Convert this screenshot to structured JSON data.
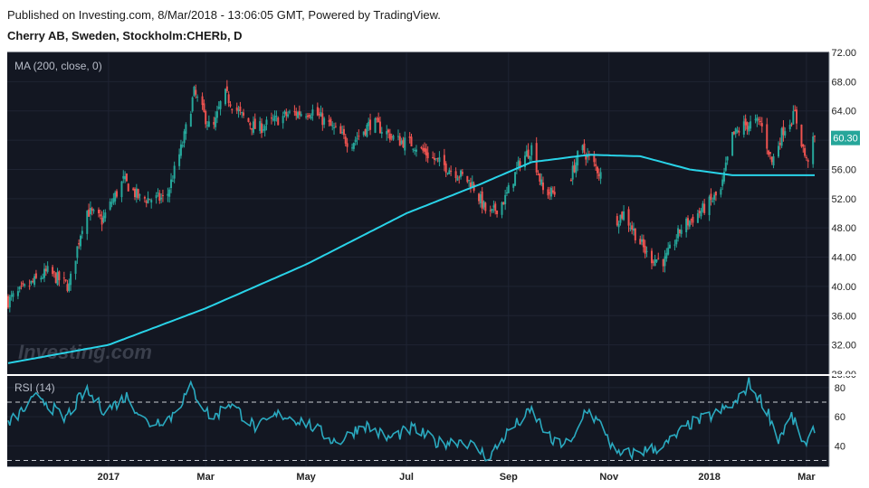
{
  "header": {
    "published": "Published on Investing.com, 8/Mar/2018 - 13:06:05 GMT, Powered by TradingView.",
    "instrument": "Cherry AB, Sweden, Stockholm:CHERb, D"
  },
  "watermark": "Investing.com",
  "colors": {
    "background": "#131722",
    "up": "#26a69a",
    "down": "#ef5350",
    "ma": "#29d3e8",
    "rsi": "#2aa9bf",
    "last_price_badge": "#26a69a"
  },
  "chart_data": [
    {
      "type": "candlestick",
      "title": "MA (200, close, 0)",
      "y_ticks": [
        "72.00",
        "68.00",
        "64.00",
        "60.00",
        "56.00",
        "52.00",
        "48.00",
        "44.00",
        "40.00",
        "36.00",
        "32.00",
        "28.00"
      ],
      "ylim": [
        28,
        72
      ],
      "last_price": "60.30",
      "price_waypoints": [
        [
          "2016-11-01",
          38.0
        ],
        [
          "2016-11-25",
          42.0
        ],
        [
          "2016-12-08",
          40.0
        ],
        [
          "2016-12-18",
          50.5
        ],
        [
          "2016-12-28",
          49.0
        ],
        [
          "2017-01-10",
          54.5
        ],
        [
          "2017-01-20",
          52.0
        ],
        [
          "2017-02-05",
          52.0
        ],
        [
          "2017-02-15",
          59.5
        ],
        [
          "2017-02-22",
          66.5
        ],
        [
          "2017-03-05",
          61.0
        ],
        [
          "2017-03-12",
          66.5
        ],
        [
          "2017-03-22",
          63.5
        ],
        [
          "2017-04-01",
          61.5
        ],
        [
          "2017-04-20",
          63.5
        ],
        [
          "2017-05-05",
          64.0
        ],
        [
          "2017-05-15",
          62.0
        ],
        [
          "2017-05-28",
          59.5
        ],
        [
          "2017-06-10",
          62.5
        ],
        [
          "2017-06-25",
          60.0
        ],
        [
          "2017-07-05",
          59.5
        ],
        [
          "2017-07-20",
          57.0
        ],
        [
          "2017-08-01",
          55.5
        ],
        [
          "2017-08-10",
          54.0
        ],
        [
          "2017-08-20",
          49.5
        ],
        [
          "2017-08-30",
          52.0
        ],
        [
          "2017-09-08",
          57.0
        ],
        [
          "2017-09-15",
          59.0
        ],
        [
          "2017-09-22",
          53.0
        ],
        [
          "2017-10-05",
          52.5
        ],
        [
          "2017-10-15",
          59.0
        ],
        [
          "2017-10-25",
          56.0
        ],
        [
          "2017-10-30",
          54.0
        ],
        [
          "2017-11-02",
          48.5
        ],
        [
          "2017-11-10",
          50.0
        ],
        [
          "2017-11-25",
          44.0
        ],
        [
          "2017-12-05",
          43.5
        ],
        [
          "2017-12-15",
          48.0
        ],
        [
          "2017-12-28",
          50.5
        ],
        [
          "2018-01-08",
          53.0
        ],
        [
          "2018-01-15",
          60.5
        ],
        [
          "2018-01-22",
          62.0
        ],
        [
          "2018-02-01",
          62.5
        ],
        [
          "2018-02-08",
          57.0
        ],
        [
          "2018-02-15",
          61.5
        ],
        [
          "2018-02-22",
          63.5
        ],
        [
          "2018-03-01",
          57.0
        ],
        [
          "2018-03-06",
          60.3
        ]
      ],
      "gaps": [
        [
          "2017-10-02",
          "2017-10-08"
        ],
        [
          "2017-10-28",
          "2017-11-05"
        ]
      ],
      "ma200_waypoints": [
        [
          "2016-11-01",
          29.5
        ],
        [
          "2017-01-01",
          32.0
        ],
        [
          "2017-03-01",
          37.0
        ],
        [
          "2017-05-01",
          43.0
        ],
        [
          "2017-07-01",
          50.0
        ],
        [
          "2017-08-15",
          54.0
        ],
        [
          "2017-09-15",
          57.0
        ],
        [
          "2017-10-20",
          58.0
        ],
        [
          "2017-11-20",
          57.8
        ],
        [
          "2017-12-20",
          56.0
        ],
        [
          "2018-01-15",
          55.2
        ],
        [
          "2018-02-15",
          55.2
        ],
        [
          "2018-03-06",
          55.2
        ]
      ]
    },
    {
      "type": "line",
      "title": "RSI (14)",
      "y_ticks": [
        "80",
        "60",
        "40"
      ],
      "ylim": [
        26,
        88
      ],
      "overbought": 70,
      "oversold": 30,
      "rsi_waypoints": [
        [
          "2016-11-01",
          55
        ],
        [
          "2016-11-20",
          75
        ],
        [
          "2016-12-05",
          58
        ],
        [
          "2016-12-18",
          78
        ],
        [
          "2016-12-30",
          64
        ],
        [
          "2017-01-12",
          74
        ],
        [
          "2017-01-25",
          55
        ],
        [
          "2017-02-08",
          60
        ],
        [
          "2017-02-20",
          80
        ],
        [
          "2017-03-05",
          58
        ],
        [
          "2017-03-15",
          70
        ],
        [
          "2017-04-01",
          52
        ],
        [
          "2017-04-15",
          62
        ],
        [
          "2017-05-01",
          56
        ],
        [
          "2017-05-20",
          42
        ],
        [
          "2017-06-05",
          55
        ],
        [
          "2017-06-20",
          45
        ],
        [
          "2017-07-05",
          52
        ],
        [
          "2017-07-20",
          42
        ],
        [
          "2017-08-05",
          44
        ],
        [
          "2017-08-20",
          32
        ],
        [
          "2017-09-01",
          50
        ],
        [
          "2017-09-15",
          64
        ],
        [
          "2017-09-28",
          42
        ],
        [
          "2017-10-10",
          42
        ],
        [
          "2017-10-18",
          66
        ],
        [
          "2017-10-30",
          50
        ],
        [
          "2017-11-05",
          33
        ],
        [
          "2017-11-20",
          36
        ],
        [
          "2017-12-05",
          40
        ],
        [
          "2017-12-20",
          55
        ],
        [
          "2018-01-05",
          62
        ],
        [
          "2018-01-18",
          70
        ],
        [
          "2018-01-25",
          83
        ],
        [
          "2018-02-05",
          65
        ],
        [
          "2018-02-12",
          45
        ],
        [
          "2018-02-20",
          60
        ],
        [
          "2018-03-01",
          38
        ],
        [
          "2018-03-06",
          53
        ]
      ],
      "x_tick_labels": [
        {
          "label": "2017",
          "date": "2017-01-01"
        },
        {
          "label": "Mar",
          "date": "2017-03-01"
        },
        {
          "label": "May",
          "date": "2017-05-01"
        },
        {
          "label": "Jul",
          "date": "2017-07-01"
        },
        {
          "label": "Sep",
          "date": "2017-09-01"
        },
        {
          "label": "Nov",
          "date": "2017-11-01"
        },
        {
          "label": "2018",
          "date": "2018-01-01"
        },
        {
          "label": "Mar",
          "date": "2018-03-01"
        }
      ]
    }
  ]
}
